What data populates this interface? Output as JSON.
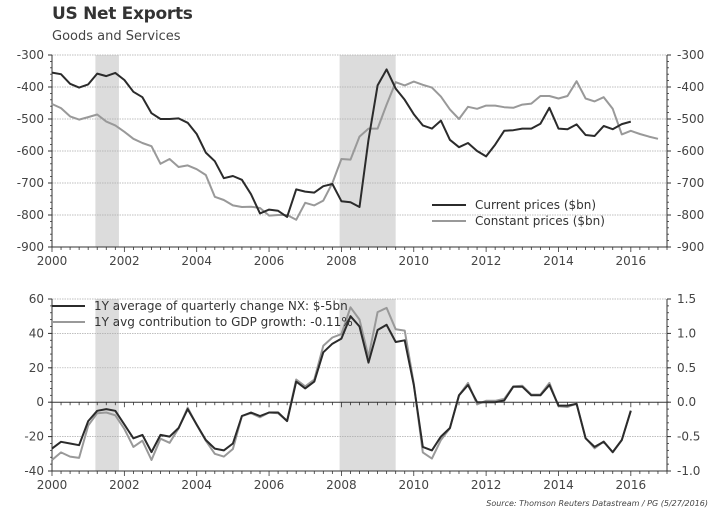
{
  "title": "US Net Exports",
  "subtitle": "Goods and Services",
  "source": "Source: Thomson Reuters Datastream / PG (5/27/2016)",
  "chart_data": [
    {
      "type": "line",
      "title": "US Net Exports",
      "subtitle": "Goods and Services",
      "xlabel": "",
      "ylabel": "",
      "xlim": [
        2000,
        2017
      ],
      "ylim": [
        -900,
        -300
      ],
      "x_ticks": [
        "2000",
        "2002",
        "2004",
        "2006",
        "2008",
        "2010",
        "2012",
        "2014",
        "2016"
      ],
      "y_ticks_left": [
        "-300",
        "-400",
        "-500",
        "-600",
        "-700",
        "-800",
        "-900"
      ],
      "y_ticks_right": [
        "-300",
        "-400",
        "-500",
        "-600",
        "-700",
        "-800",
        "-900"
      ],
      "grid": true,
      "legend_position": "bottom-right",
      "shaded_periods": [
        [
          2001.2,
          2001.85
        ],
        [
          2007.95,
          2009.5
        ]
      ],
      "x_start": 2000.0,
      "x_step": 0.25,
      "series": [
        {
          "name": "Current prices ($bn)",
          "color": "#2b2b2b",
          "values": [
            -355,
            -360,
            -390,
            -402,
            -392,
            -358,
            -366,
            -356,
            -378,
            -415,
            -432,
            -482,
            -500,
            -500,
            -498,
            -512,
            -547,
            -605,
            -632,
            -685,
            -678,
            -690,
            -735,
            -795,
            -783,
            -787,
            -806,
            -720,
            -727,
            -730,
            -710,
            -703,
            -757,
            -760,
            -775,
            -565,
            -395,
            -345,
            -405,
            -440,
            -485,
            -520,
            -530,
            -505,
            -565,
            -588,
            -575,
            -600,
            -617,
            -580,
            -537,
            -535,
            -530,
            -530,
            -515,
            -465,
            -530,
            -532,
            -517,
            -550,
            -553,
            -522,
            -532,
            -516,
            -508
          ]
        },
        {
          "name": "Constant prices ($bn)",
          "color": "#999999",
          "values": [
            -453,
            -466,
            -492,
            -502,
            -494,
            -486,
            -508,
            -520,
            -540,
            -562,
            -575,
            -585,
            -640,
            -625,
            -650,
            -645,
            -657,
            -675,
            -743,
            -753,
            -770,
            -775,
            -774,
            -778,
            -802,
            -800,
            -800,
            -815,
            -762,
            -770,
            -755,
            -700,
            -625,
            -627,
            -555,
            -530,
            -530,
            -455,
            -385,
            -395,
            -383,
            -393,
            -402,
            -430,
            -470,
            -500,
            -462,
            -468,
            -458,
            -458,
            -463,
            -465,
            -455,
            -452,
            -428,
            -428,
            -436,
            -428,
            -382,
            -436,
            -445,
            -432,
            -468,
            -548,
            -537,
            -547,
            -555,
            -562
          ]
        }
      ]
    },
    {
      "type": "line",
      "title": "",
      "xlabel": "",
      "ylabel": "",
      "xlim": [
        2000,
        2017
      ],
      "ylim_left": [
        -40,
        60
      ],
      "ylim_right": [
        -1.0,
        1.5
      ],
      "x_ticks": [
        "2000",
        "2002",
        "2004",
        "2006",
        "2008",
        "2010",
        "2012",
        "2014",
        "2016"
      ],
      "y_ticks_left": [
        "60",
        "40",
        "20",
        "0",
        "-20",
        "-40"
      ],
      "y_ticks_right": [
        "1.5",
        "1.0",
        "0.5",
        "0.0",
        "-0.5",
        "-1.0"
      ],
      "grid": true,
      "legend_position": "top-left",
      "shaded_periods": [
        [
          2001.2,
          2001.85
        ],
        [
          2007.95,
          2009.5
        ]
      ],
      "x_start": 2000.0,
      "x_step": 0.25,
      "series": [
        {
          "name": "1Y average of quarterly change NX: $-5bn",
          "axis": "left",
          "color": "#2b2b2b",
          "values": [
            -27,
            -23,
            -24,
            -25,
            -11,
            -5,
            -4,
            -5,
            -13,
            -21,
            -19,
            -29,
            -19,
            -20,
            -15,
            -4,
            -13,
            -22,
            -27,
            -28,
            -24,
            -8,
            -6,
            -8,
            -6,
            -6,
            -11,
            12,
            8,
            12,
            29,
            34,
            37,
            50,
            44,
            23,
            42,
            45,
            35,
            36,
            10,
            -26,
            -28,
            -20,
            -15,
            4,
            10,
            0,
            0,
            0,
            1,
            9,
            9,
            4,
            4,
            10,
            -2,
            -2,
            -1,
            -21,
            -26,
            -23,
            -29,
            -22,
            -5
          ]
        },
        {
          "name": "1Y avg contribution to GDP growth: -0.11%",
          "axis": "right",
          "color": "#999999",
          "values": [
            -0.84,
            -0.73,
            -0.79,
            -0.81,
            -0.34,
            -0.16,
            -0.15,
            -0.19,
            -0.39,
            -0.65,
            -0.56,
            -0.84,
            -0.53,
            -0.59,
            -0.38,
            -0.08,
            -0.33,
            -0.56,
            -0.75,
            -0.79,
            -0.68,
            -0.2,
            -0.16,
            -0.22,
            -0.15,
            -0.16,
            -0.27,
            0.33,
            0.23,
            0.33,
            0.82,
            0.94,
            0.99,
            1.38,
            1.2,
            0.66,
            1.31,
            1.37,
            1.06,
            1.04,
            0.27,
            -0.73,
            -0.82,
            -0.55,
            -0.38,
            0.1,
            0.28,
            -0.03,
            0.02,
            0.02,
            0.05,
            0.23,
            0.24,
            0.11,
            0.11,
            0.28,
            -0.06,
            -0.07,
            -0.02,
            -0.52,
            -0.67,
            -0.57,
            -0.73,
            -0.55,
            -0.12
          ]
        }
      ]
    }
  ]
}
